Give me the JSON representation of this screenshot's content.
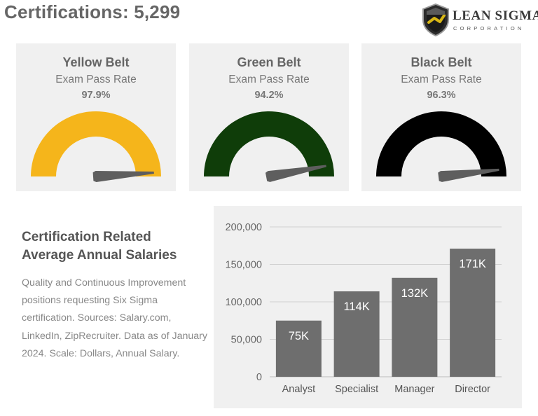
{
  "header": {
    "title": "Certifications: 5,299"
  },
  "logo": {
    "name": "LEAN SIGMA",
    "sub": "CORPORATION"
  },
  "gauges": [
    {
      "belt": "Yellow Belt",
      "subtitle": "Exam Pass Rate",
      "value_label": "97.9%",
      "value": 97.9,
      "color": "#f5b51b"
    },
    {
      "belt": "Green Belt",
      "subtitle": "Exam Pass Rate",
      "value_label": "94.2%",
      "value": 94.2,
      "color": "#0f3d09"
    },
    {
      "belt": "Black Belt",
      "subtitle": "Exam Pass Rate",
      "value_label": "96.3%",
      "value": 96.3,
      "color": "#000000"
    }
  ],
  "salary_section": {
    "title": "Certification Related Average Annual Salaries",
    "description": "Quality and Continuous Improvement positions requesting Six Sigma certification. Sources: Salary.com, LinkedIn, ZipRecruiter. Data as of January 2024. Scale: Dollars, Annual Salary."
  },
  "chart_data": {
    "type": "bar",
    "categories": [
      "Analyst",
      "Specialist",
      "Manager",
      "Director"
    ],
    "values": [
      75000,
      114000,
      132000,
      171000
    ],
    "data_labels": [
      "75K",
      "114K",
      "132K",
      "171K"
    ],
    "yticks": [
      0,
      50000,
      100000,
      150000,
      200000
    ],
    "ytick_labels": [
      "0",
      "50,000",
      "100,000",
      "150,000",
      "200,000"
    ],
    "ylim": [
      0,
      200000
    ],
    "grid": true,
    "bar_color": "#6e6e6e",
    "grid_color": "#d0d0d0"
  }
}
